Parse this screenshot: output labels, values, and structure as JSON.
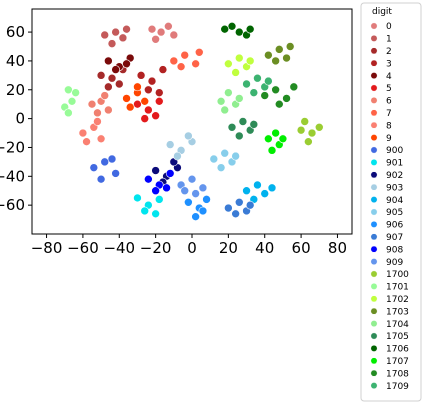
{
  "chart_data": {
    "type": "scatter",
    "title": "",
    "xlabel": "",
    "ylabel": "",
    "xlim": [
      -88,
      88
    ],
    "ylim": [
      -80,
      76
    ],
    "xticks": [
      -80,
      -60,
      -40,
      -20,
      0,
      20,
      40,
      60,
      80
    ],
    "yticks": [
      -60,
      -40,
      -20,
      0,
      20,
      40,
      60
    ],
    "xtick_labels": [
      "−80",
      "−60",
      "−40",
      "−20",
      "0",
      "20",
      "40",
      "60",
      "80"
    ],
    "ytick_labels": [
      "−60",
      "−40",
      "−20",
      "0",
      "20",
      "40",
      "60"
    ],
    "grid": false,
    "legend": {
      "title": "digit",
      "position": "outside-right"
    },
    "series": [
      {
        "name": "0",
        "color": "#e07b7b",
        "points": [
          [
            -22,
            62
          ],
          [
            -17,
            60
          ],
          [
            -13,
            64
          ],
          [
            -20,
            55
          ],
          [
            -10,
            58
          ]
        ]
      },
      {
        "name": "1",
        "color": "#c45a5a",
        "points": [
          [
            -48,
            58
          ],
          [
            -42,
            60
          ],
          [
            -38,
            56
          ],
          [
            -44,
            52
          ],
          [
            -36,
            62
          ]
        ]
      },
      {
        "name": "2",
        "color": "#a52a2a",
        "points": [
          [
            -50,
            30
          ],
          [
            -44,
            28
          ],
          [
            -38,
            34
          ],
          [
            -46,
            22
          ],
          [
            -40,
            24
          ]
        ]
      },
      {
        "name": "3",
        "color": "#b22222",
        "points": [
          [
            -28,
            30
          ],
          [
            -22,
            26
          ],
          [
            -16,
            34
          ],
          [
            -24,
            20
          ],
          [
            -18,
            18
          ]
        ]
      },
      {
        "name": "4",
        "color": "#7a0a0a",
        "points": [
          [
            -46,
            40
          ],
          [
            -40,
            36
          ],
          [
            -34,
            42
          ],
          [
            -42,
            34
          ],
          [
            -36,
            38
          ]
        ]
      },
      {
        "name": "5",
        "color": "#e31a1c",
        "points": [
          [
            -30,
            10
          ],
          [
            -24,
            6
          ],
          [
            -18,
            12
          ],
          [
            -26,
            0
          ],
          [
            -20,
            2
          ]
        ]
      },
      {
        "name": "6",
        "color": "#f08070",
        "points": [
          [
            -55,
            10
          ],
          [
            -50,
            12
          ],
          [
            -46,
            6
          ],
          [
            -52,
            4
          ],
          [
            -48,
            16
          ]
        ]
      },
      {
        "name": "7",
        "color": "#ff6347",
        "points": [
          [
            -10,
            40
          ],
          [
            -4,
            44
          ],
          [
            2,
            38
          ],
          [
            -6,
            36
          ],
          [
            4,
            46
          ]
        ]
      },
      {
        "name": "8",
        "color": "#fa8072",
        "points": [
          [
            -60,
            -10
          ],
          [
            -54,
            -6
          ],
          [
            -50,
            -14
          ],
          [
            -58,
            -16
          ],
          [
            -52,
            -2
          ]
        ]
      },
      {
        "name": "9",
        "color": "#ff4500",
        "points": [
          [
            -36,
            14
          ],
          [
            -30,
            18
          ],
          [
            -26,
            12
          ],
          [
            -34,
            8
          ],
          [
            -30,
            22
          ]
        ]
      },
      {
        "name": "900",
        "color": "#4169e1",
        "points": [
          [
            -54,
            -34
          ],
          [
            -48,
            -30
          ],
          [
            -42,
            -38
          ],
          [
            -50,
            -42
          ],
          [
            -44,
            -28
          ]
        ]
      },
      {
        "name": "901",
        "color": "#00e5ee",
        "points": [
          [
            -30,
            -55
          ],
          [
            -24,
            -60
          ],
          [
            -18,
            -56
          ],
          [
            -26,
            -64
          ],
          [
            -20,
            -66
          ]
        ]
      },
      {
        "name": "902",
        "color": "#0b0b7a",
        "points": [
          [
            -20,
            -36
          ],
          [
            -14,
            -40
          ],
          [
            -8,
            -34
          ],
          [
            -16,
            -44
          ],
          [
            -10,
            -30
          ]
        ]
      },
      {
        "name": "903",
        "color": "#a6cee3",
        "points": [
          [
            -12,
            -18
          ],
          [
            -6,
            -22
          ],
          [
            0,
            -16
          ],
          [
            -8,
            -26
          ],
          [
            -2,
            -12
          ]
        ]
      },
      {
        "name": "904",
        "color": "#00b2ee",
        "points": [
          [
            30,
            -50
          ],
          [
            36,
            -46
          ],
          [
            40,
            -52
          ],
          [
            34,
            -56
          ],
          [
            44,
            -48
          ]
        ]
      },
      {
        "name": "905",
        "color": "#87ceeb",
        "points": [
          [
            12,
            -28
          ],
          [
            18,
            -24
          ],
          [
            22,
            -30
          ],
          [
            16,
            -34
          ],
          [
            24,
            -26
          ]
        ]
      },
      {
        "name": "906",
        "color": "#1e90ff",
        "points": [
          [
            -2,
            -58
          ],
          [
            4,
            -62
          ],
          [
            8,
            -56
          ],
          [
            2,
            -68
          ],
          [
            6,
            -64
          ]
        ]
      },
      {
        "name": "907",
        "color": "#3a7bd5",
        "points": [
          [
            20,
            -62
          ],
          [
            26,
            -58
          ],
          [
            30,
            -64
          ],
          [
            24,
            -66
          ],
          [
            32,
            -60
          ]
        ]
      },
      {
        "name": "908",
        "color": "#0000ff",
        "points": [
          [
            -24,
            -42
          ],
          [
            -18,
            -46
          ],
          [
            -12,
            -38
          ],
          [
            -20,
            -50
          ],
          [
            -14,
            -48
          ]
        ]
      },
      {
        "name": "909",
        "color": "#6495ed",
        "points": [
          [
            -6,
            -46
          ],
          [
            0,
            -42
          ],
          [
            6,
            -48
          ],
          [
            2,
            -52
          ],
          [
            -4,
            -50
          ]
        ]
      },
      {
        "name": "1700",
        "color": "#9acd32",
        "points": [
          [
            60,
            -8
          ],
          [
            66,
            -10
          ],
          [
            70,
            -6
          ],
          [
            64,
            -16
          ],
          [
            62,
            -2
          ]
        ]
      },
      {
        "name": "1701",
        "color": "#98fb98",
        "points": [
          [
            -68,
            20
          ],
          [
            -66,
            12
          ],
          [
            -70,
            8
          ],
          [
            -64,
            18
          ],
          [
            -68,
            4
          ]
        ]
      },
      {
        "name": "1702",
        "color": "#c0ff3e",
        "points": [
          [
            20,
            38
          ],
          [
            26,
            42
          ],
          [
            30,
            36
          ],
          [
            24,
            32
          ],
          [
            32,
            40
          ]
        ]
      },
      {
        "name": "1703",
        "color": "#6b8e23",
        "points": [
          [
            42,
            44
          ],
          [
            48,
            48
          ],
          [
            52,
            42
          ],
          [
            46,
            40
          ],
          [
            54,
            50
          ]
        ]
      },
      {
        "name": "1704",
        "color": "#90ee90",
        "points": [
          [
            16,
            12
          ],
          [
            20,
            18
          ],
          [
            24,
            10
          ],
          [
            18,
            6
          ],
          [
            26,
            14
          ]
        ]
      },
      {
        "name": "1705",
        "color": "#2e8b57",
        "points": [
          [
            22,
            -6
          ],
          [
            28,
            -2
          ],
          [
            32,
            -8
          ],
          [
            26,
            -12
          ],
          [
            34,
            -4
          ]
        ]
      },
      {
        "name": "1706",
        "color": "#006400",
        "points": [
          [
            26,
            60
          ],
          [
            22,
            64
          ],
          [
            30,
            58
          ],
          [
            18,
            62
          ],
          [
            32,
            62
          ]
        ]
      },
      {
        "name": "1707",
        "color": "#00ee00",
        "points": [
          [
            42,
            -14
          ],
          [
            46,
            -10
          ],
          [
            48,
            -18
          ],
          [
            44,
            -22
          ],
          [
            50,
            -14
          ]
        ]
      },
      {
        "name": "1708",
        "color": "#228b22",
        "points": [
          [
            40,
            16
          ],
          [
            46,
            20
          ],
          [
            52,
            14
          ],
          [
            48,
            10
          ],
          [
            56,
            22
          ]
        ]
      },
      {
        "name": "1709",
        "color": "#3cb371",
        "points": [
          [
            30,
            24
          ],
          [
            36,
            28
          ],
          [
            40,
            22
          ],
          [
            34,
            18
          ],
          [
            42,
            26
          ]
        ]
      }
    ]
  }
}
